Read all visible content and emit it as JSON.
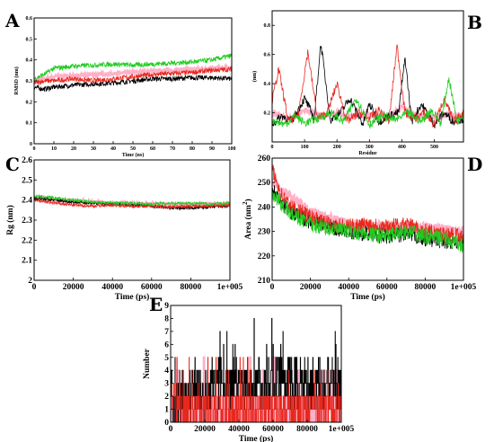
{
  "chart_data": [
    {
      "panel": "A",
      "type": "line",
      "xlabel": "Time (ns)",
      "ylabel": "RMSD (nm)",
      "xlim": [
        0,
        100
      ],
      "ylim": [
        0,
        0.6
      ],
      "xticks": [
        "0",
        "10",
        "20",
        "30",
        "40",
        "50",
        "60",
        "70",
        "80",
        "90",
        "100"
      ],
      "yticks": [
        "0",
        "0.1",
        "0.2",
        "0.3",
        "0.4",
        "0.5",
        "0.6"
      ],
      "series": [
        {
          "color": "#000000",
          "x": [
            0,
            5,
            10,
            20,
            30,
            40,
            50,
            60,
            70,
            80,
            90,
            100
          ],
          "y": [
            0.27,
            0.26,
            0.27,
            0.28,
            0.285,
            0.29,
            0.3,
            0.31,
            0.31,
            0.315,
            0.315,
            0.31
          ]
        },
        {
          "color": "#e8281e",
          "x": [
            0,
            5,
            10,
            20,
            30,
            40,
            50,
            60,
            70,
            80,
            90,
            100
          ],
          "y": [
            0.29,
            0.3,
            0.3,
            0.31,
            0.3,
            0.31,
            0.32,
            0.33,
            0.335,
            0.34,
            0.35,
            0.355
          ]
        },
        {
          "color": "#22cc22",
          "x": [
            0,
            5,
            10,
            20,
            30,
            40,
            50,
            60,
            70,
            80,
            90,
            100
          ],
          "y": [
            0.31,
            0.33,
            0.36,
            0.37,
            0.375,
            0.38,
            0.375,
            0.38,
            0.385,
            0.39,
            0.4,
            0.42
          ]
        },
        {
          "color": "#ffb0c8",
          "x": [
            0,
            5,
            10,
            20,
            30,
            40,
            50,
            60,
            70,
            80,
            90,
            100
          ],
          "y": [
            0.3,
            0.31,
            0.32,
            0.325,
            0.33,
            0.335,
            0.34,
            0.345,
            0.35,
            0.355,
            0.36,
            0.36
          ]
        }
      ]
    },
    {
      "panel": "B",
      "type": "line",
      "xlabel": "Residue",
      "ylabel": "(nm)",
      "xlim": [
        0,
        590
      ],
      "ylim": [
        0,
        0.9
      ],
      "xticks": [
        "0",
        "100",
        "200",
        "300",
        "400",
        "500"
      ],
      "yticks": [
        "0.2",
        "0.4",
        "0.6",
        "0.8"
      ],
      "series": [
        {
          "color": "#000000",
          "x": [
            0,
            30,
            60,
            100,
            130,
            150,
            180,
            210,
            240,
            280,
            300,
            330,
            360,
            390,
            410,
            430,
            460,
            500,
            530,
            560,
            590
          ],
          "y": [
            0.12,
            0.18,
            0.14,
            0.3,
            0.16,
            0.68,
            0.15,
            0.2,
            0.3,
            0.12,
            0.26,
            0.14,
            0.18,
            0.2,
            0.58,
            0.14,
            0.26,
            0.12,
            0.2,
            0.14,
            0.16
          ]
        },
        {
          "color": "#e8281e",
          "x": [
            0,
            20,
            50,
            80,
            110,
            140,
            170,
            200,
            230,
            270,
            300,
            330,
            360,
            385,
            410,
            440,
            470,
            500,
            530,
            560,
            590
          ],
          "y": [
            0.28,
            0.5,
            0.14,
            0.18,
            0.62,
            0.16,
            0.2,
            0.4,
            0.14,
            0.2,
            0.16,
            0.22,
            0.14,
            0.66,
            0.2,
            0.16,
            0.2,
            0.12,
            0.3,
            0.14,
            0.2
          ]
        },
        {
          "color": "#22cc22",
          "x": [
            0,
            40,
            70,
            100,
            140,
            180,
            220,
            260,
            300,
            340,
            380,
            420,
            460,
            490,
            520,
            545,
            570,
            590
          ],
          "y": [
            0.15,
            0.12,
            0.18,
            0.13,
            0.16,
            0.2,
            0.14,
            0.3,
            0.12,
            0.18,
            0.15,
            0.2,
            0.14,
            0.22,
            0.13,
            0.44,
            0.14,
            0.2
          ]
        },
        {
          "color": "#ffb0c8",
          "x": [
            0,
            50,
            100,
            150,
            200,
            250,
            300,
            350,
            400,
            450,
            500,
            550,
            590
          ],
          "y": [
            0.2,
            0.16,
            0.22,
            0.18,
            0.2,
            0.17,
            0.19,
            0.16,
            0.24,
            0.18,
            0.17,
            0.19,
            0.18
          ]
        }
      ]
    },
    {
      "panel": "C",
      "type": "line",
      "xlabel": "Time (ps)",
      "ylabel": "Rg (nm)",
      "xlim": [
        0,
        100000
      ],
      "ylim": [
        2,
        2.6
      ],
      "xticks": [
        "0",
        "20000",
        "40000",
        "60000",
        "80000",
        "1e+005"
      ],
      "yticks": [
        "2",
        "2.1",
        "2.2",
        "2.3",
        "2.4",
        "2.5",
        "2.6"
      ],
      "series": [
        {
          "color": "#000000",
          "x": [
            0,
            10000,
            20000,
            30000,
            40000,
            50000,
            60000,
            70000,
            80000,
            90000,
            100000
          ],
          "y": [
            2.41,
            2.4,
            2.39,
            2.385,
            2.38,
            2.375,
            2.37,
            2.36,
            2.36,
            2.365,
            2.37
          ]
        },
        {
          "color": "#e8281e",
          "x": [
            0,
            10000,
            20000,
            30000,
            40000,
            50000,
            60000,
            70000,
            80000,
            90000,
            100000
          ],
          "y": [
            2.4,
            2.385,
            2.375,
            2.37,
            2.375,
            2.37,
            2.37,
            2.365,
            2.37,
            2.37,
            2.375
          ]
        },
        {
          "color": "#22cc22",
          "x": [
            0,
            10000,
            20000,
            30000,
            40000,
            50000,
            60000,
            70000,
            80000,
            90000,
            100000
          ],
          "y": [
            2.42,
            2.41,
            2.4,
            2.39,
            2.385,
            2.385,
            2.38,
            2.385,
            2.385,
            2.38,
            2.385
          ]
        },
        {
          "color": "#ffb0c8",
          "x": [
            0,
            20000,
            40000,
            60000,
            80000,
            100000
          ],
          "y": [
            2.41,
            2.395,
            2.385,
            2.38,
            2.375,
            2.38
          ]
        }
      ]
    },
    {
      "panel": "D",
      "type": "line",
      "xlabel": "Time (ps)",
      "ylabel": "Area (nm",
      "ylabel_sup": "2",
      "ylabel_tail": ")",
      "xlim": [
        0,
        100000
      ],
      "ylim": [
        210,
        260
      ],
      "xticks": [
        "0",
        "20000",
        "40000",
        "60000",
        "80000",
        "1e+005"
      ],
      "yticks": [
        "210",
        "220",
        "230",
        "240",
        "250",
        "260"
      ],
      "series": [
        {
          "color": "#000000",
          "x": [
            0,
            5000,
            10000,
            20000,
            30000,
            40000,
            50000,
            60000,
            70000,
            80000,
            90000,
            100000
          ],
          "y": [
            248,
            242,
            238,
            234,
            232,
            230,
            229,
            228,
            229,
            227,
            226,
            226
          ]
        },
        {
          "color": "#e8281e",
          "x": [
            0,
            5000,
            10000,
            20000,
            30000,
            40000,
            50000,
            60000,
            70000,
            80000,
            90000,
            100000
          ],
          "y": [
            255,
            245,
            240,
            236,
            233,
            232,
            233,
            232,
            233,
            230,
            229,
            228
          ]
        },
        {
          "color": "#22cc22",
          "x": [
            0,
            5000,
            10000,
            20000,
            30000,
            40000,
            50000,
            60000,
            70000,
            80000,
            90000,
            100000
          ],
          "y": [
            246,
            241,
            237,
            233,
            231,
            230,
            229,
            228,
            230,
            228,
            227,
            224
          ]
        },
        {
          "color": "#ffb0c8",
          "x": [
            0,
            20000,
            40000,
            60000,
            80000,
            100000
          ],
          "y": [
            250,
            238,
            233,
            232,
            232,
            230
          ]
        }
      ]
    },
    {
      "panel": "E",
      "type": "line",
      "xlabel": "Time (ps)",
      "ylabel": "Number",
      "xlim": [
        0,
        100000
      ],
      "ylim": [
        0,
        9
      ],
      "xticks": [
        "0",
        "20000",
        "40000",
        "60000",
        "80000",
        "1e+005"
      ],
      "yticks": [
        "0",
        "1",
        "2",
        "3",
        "4",
        "5",
        "6",
        "7",
        "8",
        "9"
      ],
      "series": [
        {
          "color": "#000000",
          "x": [
            0,
            5000,
            10000,
            15000,
            20000,
            25000,
            30000,
            40000,
            50000,
            60000,
            70000,
            80000,
            90000,
            100000
          ],
          "y": [
            2,
            1,
            2,
            3,
            2,
            3,
            3,
            3,
            3,
            3,
            3,
            3,
            3,
            3
          ],
          "spread": 2
        },
        {
          "color": "#e8281e",
          "x": [
            0,
            10000,
            20000,
            30000,
            40000,
            50000,
            60000,
            70000,
            80000,
            90000,
            100000
          ],
          "y": [
            2,
            1,
            1,
            1,
            1,
            1,
            1,
            1,
            1,
            1,
            1
          ],
          "spread": 1.5
        },
        {
          "color": "#ffb0c8",
          "x": [
            0,
            20000,
            40000,
            60000,
            80000,
            100000
          ],
          "y": [
            1,
            1,
            1,
            1,
            1,
            1
          ],
          "spread": 1
        }
      ]
    }
  ]
}
